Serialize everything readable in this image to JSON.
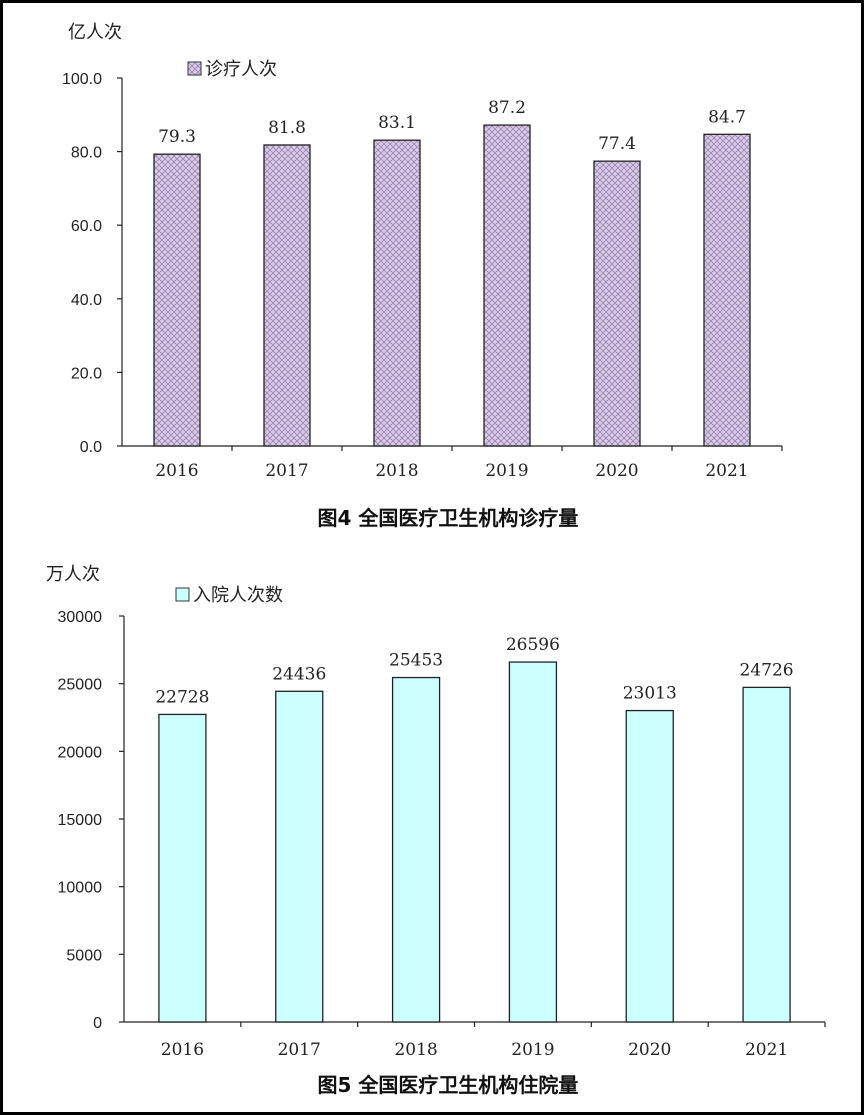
{
  "chart_data": [
    {
      "type": "bar",
      "unit_label": "亿人次",
      "legend": "诊疗人次",
      "caption": "图4   全国医疗卫生机构诊疗量",
      "categories": [
        "2016",
        "2017",
        "2018",
        "2019",
        "2020",
        "2021"
      ],
      "series": [
        {
          "name": "诊疗人次",
          "values": [
            79.3,
            81.8,
            83.1,
            87.2,
            77.4,
            84.7
          ]
        }
      ],
      "value_labels": [
        "79.3",
        "81.8",
        "83.1",
        "87.2",
        "77.4",
        "84.7"
      ],
      "ylim": [
        0,
        100
      ],
      "yticks": [
        "0.0",
        "20.0",
        "40.0",
        "60.0",
        "80.0",
        "100.0"
      ],
      "grid": false,
      "legend_position": "top-left",
      "fill_color": "#c8b8d8",
      "pattern": "crosshatch"
    },
    {
      "type": "bar",
      "unit_label": "万人次",
      "legend": "入院人次数",
      "caption": "图5 全国医疗卫生机构住院量",
      "categories": [
        "2016",
        "2017",
        "2018",
        "2019",
        "2020",
        "2021"
      ],
      "series": [
        {
          "name": "入院人次数",
          "values": [
            22728,
            24436,
            25453,
            26596,
            23013,
            24726
          ]
        }
      ],
      "value_labels": [
        "22728",
        "24436",
        "25453",
        "26596",
        "23013",
        "24726"
      ],
      "ylim": [
        0,
        30000
      ],
      "yticks": [
        "0",
        "5000",
        "10000",
        "15000",
        "20000",
        "25000",
        "30000"
      ],
      "grid": false,
      "legend_position": "top-left",
      "fill_color": "#ccffff"
    }
  ]
}
